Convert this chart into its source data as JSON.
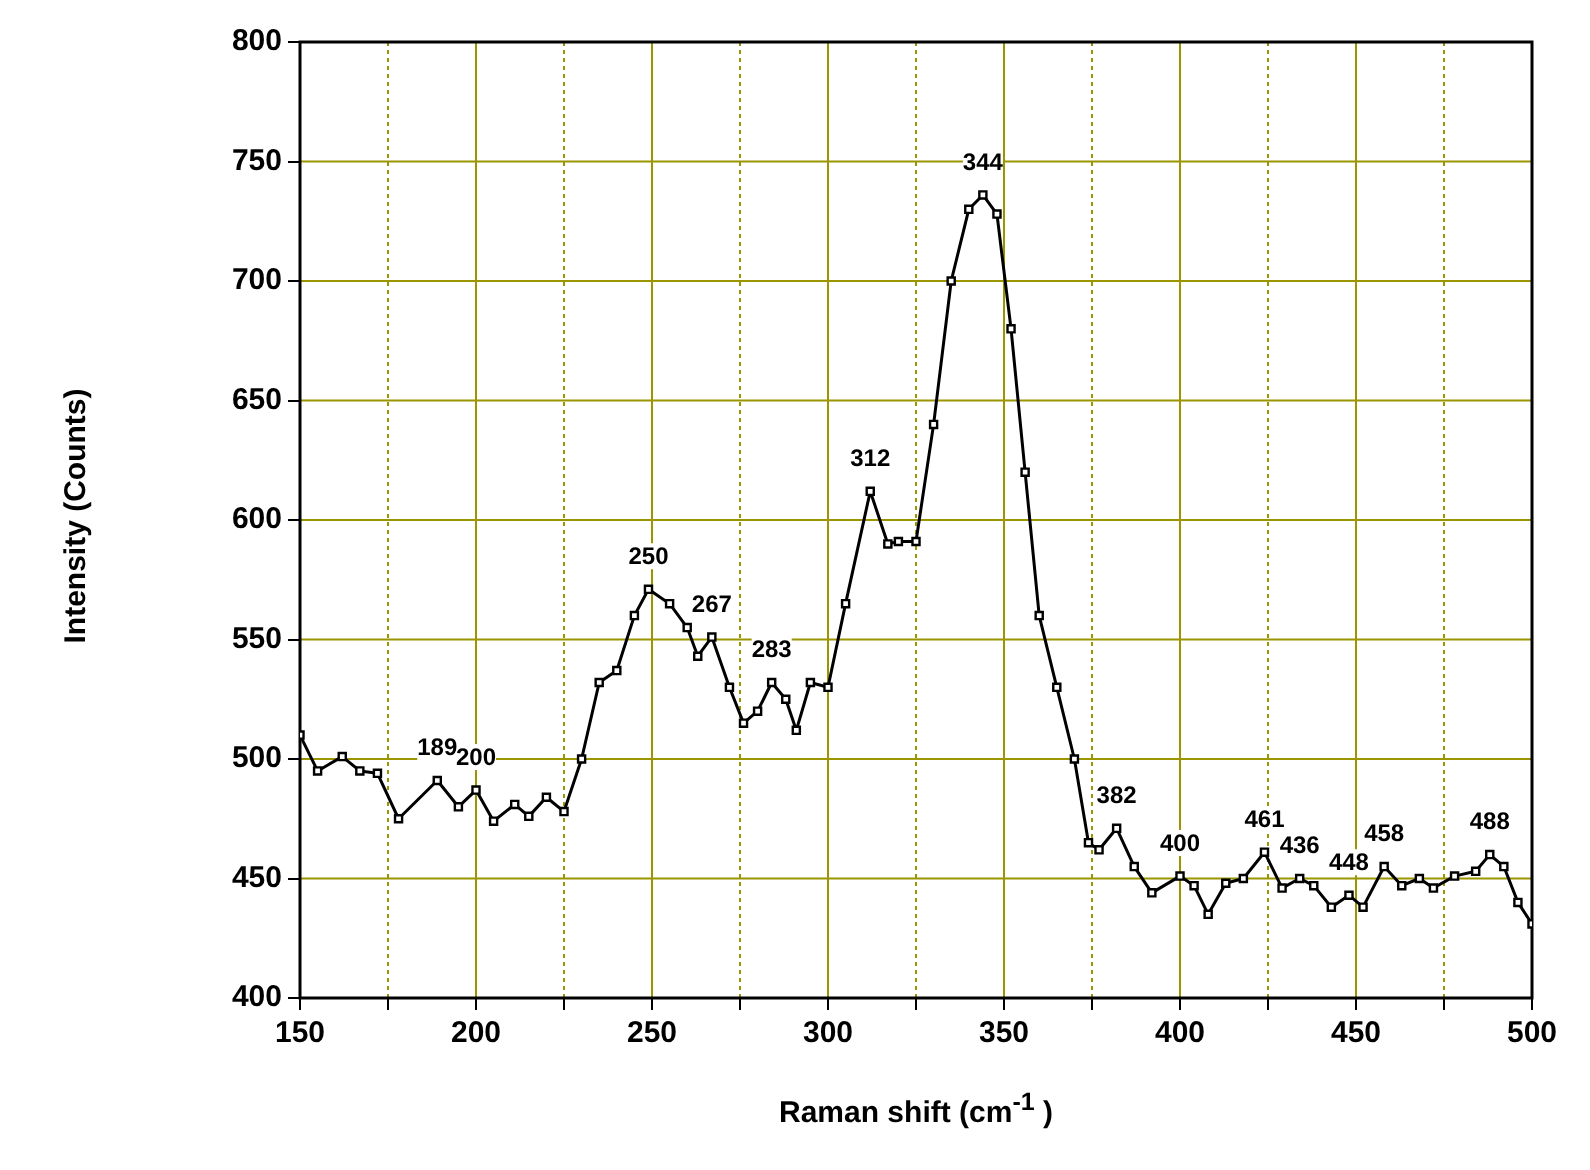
{
  "chart_data": {
    "type": "line",
    "xlabel": "Raman shift (cm$^{-1}$ )",
    "ylabel": "Intensity (Counts)",
    "marker": "square",
    "grid": true,
    "xlim": [
      150,
      500
    ],
    "xticks": [
      150,
      {
        "value": 175,
        "label": null
      },
      200,
      {
        "value": 225,
        "label": null
      },
      250,
      {
        "value": 275,
        "label": null
      },
      300,
      {
        "value": 325,
        "label": null
      },
      350,
      {
        "value": 375,
        "label": null
      },
      400,
      {
        "value": 425,
        "label": null
      },
      450,
      {
        "value": 475,
        "label": null
      },
      500
    ],
    "ylim": [
      400,
      800
    ],
    "yticks": [
      400,
      450,
      500,
      550,
      600,
      650,
      700,
      750,
      800
    ],
    "series": [
      {
        "color": "#000000",
        "x": [
          150,
          155,
          162,
          167,
          172,
          178,
          189,
          195,
          200,
          205,
          211,
          215,
          220,
          225,
          230,
          235,
          240,
          245,
          249,
          255,
          260,
          263,
          267,
          272,
          276,
          280,
          284,
          288,
          291,
          295,
          300,
          305,
          312,
          317,
          320,
          325,
          330,
          335,
          340,
          344,
          348,
          352,
          356,
          360,
          365,
          370,
          374,
          377,
          382,
          387,
          392,
          400,
          404,
          408,
          413,
          418,
          424,
          429,
          434,
          438,
          443,
          448,
          452,
          458,
          463,
          468,
          472,
          478,
          484,
          488,
          492,
          496,
          500
        ],
        "values": [
          510,
          495,
          501,
          495,
          494,
          475,
          491,
          480,
          487,
          474,
          481,
          476,
          484,
          478,
          500,
          532,
          537,
          560,
          571,
          565,
          555,
          543,
          551,
          530,
          515,
          520,
          532,
          525,
          512,
          532,
          530,
          565,
          612,
          590,
          591,
          591,
          640,
          700,
          730,
          736,
          728,
          680,
          620,
          560,
          530,
          500,
          465,
          462,
          471,
          455,
          444,
          451,
          447,
          435,
          448,
          450,
          461,
          446,
          450,
          447,
          438,
          443,
          438,
          455,
          447,
          450,
          446,
          451,
          453,
          460,
          455,
          440,
          431
        ]
      }
    ],
    "annotations": [
      {
        "text": "189",
        "x": 189,
        "y": 491
      },
      {
        "text": "200",
        "x": 200,
        "y": 487
      },
      {
        "text": "250",
        "x": 249,
        "y": 571
      },
      {
        "text": "267",
        "x": 267,
        "y": 551
      },
      {
        "text": "283",
        "x": 284,
        "y": 532
      },
      {
        "text": "312",
        "x": 312,
        "y": 612
      },
      {
        "text": "344",
        "x": 344,
        "y": 736
      },
      {
        "text": "382",
        "x": 382,
        "y": 471
      },
      {
        "text": "400",
        "x": 400,
        "y": 451
      },
      {
        "text": "461",
        "x": 424,
        "y": 461
      },
      {
        "text": "436",
        "x": 434,
        "y": 450
      },
      {
        "text": "448",
        "x": 448,
        "y": 443
      },
      {
        "text": "458",
        "x": 458,
        "y": 455
      },
      {
        "text": "488",
        "x": 488,
        "y": 460
      }
    ]
  }
}
